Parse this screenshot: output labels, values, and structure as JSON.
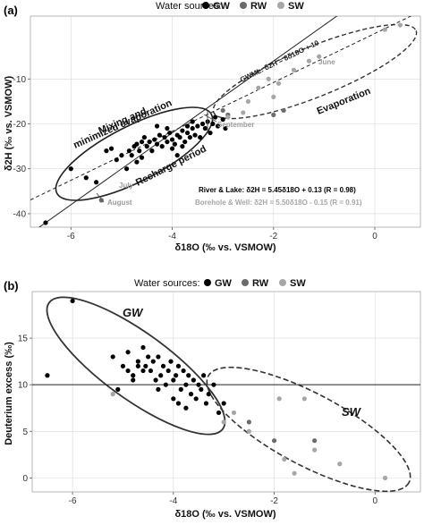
{
  "colors": {
    "GW": "#000000",
    "RW": "#6b6b6b",
    "SW": "#a6a6a6",
    "panel_bg": "#ffffff",
    "grid": "#d9d9d9"
  },
  "chart_data": [
    {
      "type": "scatter",
      "panel": "(a)",
      "legend_title": "Water sources:",
      "legend_items": [
        "GW",
        "RW",
        "SW"
      ],
      "legend_position": "top",
      "xlabel": "δ18O (‰ vs. VSMOW)",
      "ylabel": "δ2H (‰ vs. VSMOW)",
      "xlim": [
        -6.8,
        0.9
      ],
      "ylim": [
        -43,
        4
      ],
      "xticks": [
        -6,
        -4,
        -2,
        0
      ],
      "yticks": [
        -40,
        -30,
        -20,
        -10
      ],
      "grid": true,
      "series": [
        {
          "name": "GW",
          "points": [
            [
              -6.5,
              -42
            ],
            [
              -6,
              -30
            ],
            [
              -5.7,
              -32
            ],
            [
              -5.5,
              -33
            ],
            [
              -5.3,
              -26
            ],
            [
              -5.2,
              -25.5
            ],
            [
              -5.1,
              -28
            ],
            [
              -5.0,
              -27
            ],
            [
              -4.9,
              -30
            ],
            [
              -4.85,
              -26
            ],
            [
              -4.8,
              -27
            ],
            [
              -4.75,
              -25
            ],
            [
              -4.7,
              -24.5
            ],
            [
              -4.65,
              -26
            ],
            [
              -4.6,
              -24
            ],
            [
              -4.55,
              -23
            ],
            [
              -4.5,
              -25
            ],
            [
              -4.45,
              -24
            ],
            [
              -4.4,
              -26
            ],
            [
              -4.35,
              -23.5
            ],
            [
              -4.3,
              -24.5
            ],
            [
              -4.25,
              -22.5
            ],
            [
              -4.2,
              -25
            ],
            [
              -4.15,
              -23
            ],
            [
              -4.1,
              -24
            ],
            [
              -4.05,
              -22
            ],
            [
              -4.0,
              -23.5
            ],
            [
              -3.95,
              -24.5
            ],
            [
              -3.9,
              -22.5
            ],
            [
              -3.85,
              -23
            ],
            [
              -3.8,
              -21.5
            ],
            [
              -3.75,
              -24
            ],
            [
              -3.7,
              -22
            ],
            [
              -3.65,
              -23
            ],
            [
              -3.6,
              -21
            ],
            [
              -3.55,
              -22.5
            ],
            [
              -3.5,
              -20.5
            ],
            [
              -3.45,
              -23
            ],
            [
              -3.4,
              -20
            ],
            [
              -3.35,
              -21
            ],
            [
              -3.3,
              -19.5
            ],
            [
              -3.25,
              -22
            ],
            [
              -3.2,
              -20
            ],
            [
              -3.1,
              -20.5
            ],
            [
              -3.0,
              -19
            ],
            [
              -2.95,
              -21
            ],
            [
              -3.15,
              -18.5
            ],
            [
              -4.3,
              -20.5
            ],
            [
              -4.1,
              -21
            ],
            [
              -3.9,
              -27
            ],
            [
              -4.0,
              -25.5
            ],
            [
              -3.6,
              -19.5
            ],
            [
              -4.6,
              -27.5
            ],
            [
              -4.7,
              -28.5
            ],
            [
              -3.7,
              -20.5
            ],
            [
              -3.8,
              -25
            ]
          ]
        },
        {
          "name": "RW",
          "points": [
            [
              -3.0,
              -17
            ],
            [
              -2.9,
              -18
            ],
            [
              -5.4,
              -37
            ],
            [
              -2.0,
              -18
            ],
            [
              -1.8,
              -17
            ]
          ]
        },
        {
          "name": "SW",
          "points": [
            [
              -2.9,
              -18.5
            ],
            [
              -2.6,
              -17.5
            ],
            [
              -2.5,
              -15
            ],
            [
              -2.3,
              -12
            ],
            [
              -2.1,
              -10
            ],
            [
              -1.9,
              -11
            ],
            [
              -1.6,
              -8
            ],
            [
              -1.3,
              -6
            ],
            [
              -1.1,
              -5
            ],
            [
              0.2,
              1
            ],
            [
              0.5,
              2
            ],
            [
              -2.0,
              -14
            ]
          ]
        }
      ],
      "annotations": [
        {
          "text": "Mixing and",
          "role": "region"
        },
        {
          "text": "minimized evaporation",
          "role": "region"
        },
        {
          "text": "Recharge period",
          "role": "region"
        },
        {
          "text": "Evaporation",
          "role": "region"
        },
        {
          "text": "GWML: δ2H = 8δ18O + 10",
          "role": "line"
        },
        {
          "text": "July",
          "role": "month"
        },
        {
          "text": "August",
          "role": "month"
        },
        {
          "text": "September",
          "role": "month"
        },
        {
          "text": "June",
          "role": "month"
        },
        {
          "text": "River & Lake: δ2H = 5.45δ18O + 0.13 (R = 0.98)",
          "role": "equation"
        },
        {
          "text": "Borehole & Well: δ2H = 5.50δ18O - 0.15 (R = 0.91)",
          "role": "equation"
        }
      ],
      "lines": [
        {
          "label": "GWML",
          "slope": 8,
          "intercept": 10,
          "style": "solid"
        },
        {
          "label": "River & Lake",
          "slope": 5.45,
          "intercept": 0.13,
          "style": "dashed"
        }
      ]
    },
    {
      "type": "scatter",
      "panel": "(b)",
      "legend_title": "Water sources:",
      "legend_items": [
        "GW",
        "RW",
        "SW"
      ],
      "legend_position": "top",
      "xlabel": "δ18O (‰ vs. VSMOW)",
      "ylabel": "Deuterium excess (‰)",
      "xlim": [
        -6.8,
        0.9
      ],
      "ylim": [
        -1.5,
        20
      ],
      "xticks": [
        -6,
        -4,
        -2,
        0
      ],
      "yticks": [
        0,
        5,
        10,
        15
      ],
      "grid": true,
      "reference_line_y": 10,
      "series": [
        {
          "name": "GW",
          "points": [
            [
              -6.5,
              11
            ],
            [
              -6,
              19
            ],
            [
              -5.2,
              13
            ],
            [
              -5.0,
              12
            ],
            [
              -4.9,
              13.5
            ],
            [
              -4.8,
              11
            ],
            [
              -4.7,
              12.5
            ],
            [
              -4.6,
              14
            ],
            [
              -4.55,
              12
            ],
            [
              -4.5,
              13
            ],
            [
              -4.45,
              11.5
            ],
            [
              -4.4,
              12.5
            ],
            [
              -4.35,
              10.5
            ],
            [
              -4.3,
              13
            ],
            [
              -4.25,
              11
            ],
            [
              -4.2,
              12
            ],
            [
              -4.15,
              10
            ],
            [
              -4.1,
              11.5
            ],
            [
              -4.05,
              12.5
            ],
            [
              -4.0,
              10.5
            ],
            [
              -3.95,
              11
            ],
            [
              -3.9,
              12
            ],
            [
              -3.85,
              9.5
            ],
            [
              -3.8,
              11.5
            ],
            [
              -3.75,
              10
            ],
            [
              -3.7,
              11
            ],
            [
              -3.65,
              9
            ],
            [
              -3.6,
              10.5
            ],
            [
              -3.55,
              8.5
            ],
            [
              -3.5,
              10
            ],
            [
              -3.45,
              9.5
            ],
            [
              -3.4,
              11
            ],
            [
              -3.35,
              8
            ],
            [
              -3.3,
              9
            ],
            [
              -3.2,
              10
            ],
            [
              -3.1,
              7
            ],
            [
              -3.0,
              8
            ],
            [
              -4.8,
              10.5
            ],
            [
              -4.9,
              11.5
            ],
            [
              -4.7,
              12
            ],
            [
              -4.3,
              9.5
            ],
            [
              -4.0,
              8.5
            ],
            [
              -3.9,
              8
            ],
            [
              -3.75,
              7.5
            ],
            [
              -5.1,
              9.5
            ],
            [
              -4.6,
              11.5
            ]
          ]
        },
        {
          "name": "RW",
          "points": [
            [
              -2.0,
              4
            ],
            [
              -1.2,
              4
            ],
            [
              -2.5,
              6
            ]
          ]
        },
        {
          "name": "SW",
          "points": [
            [
              -5.2,
              9
            ],
            [
              -3.0,
              6
            ],
            [
              -2.8,
              7
            ],
            [
              -2.5,
              5
            ],
            [
              -1.9,
              8.5
            ],
            [
              -1.4,
              8.5
            ],
            [
              -1.8,
              2
            ],
            [
              -1.6,
              0.5
            ],
            [
              -1.2,
              3
            ],
            [
              -0.7,
              1.5
            ],
            [
              0.2,
              0
            ],
            [
              0.6,
              -2
            ]
          ]
        }
      ],
      "annotations": [
        {
          "text": "GW",
          "role": "region"
        },
        {
          "text": "SW",
          "role": "region"
        }
      ]
    }
  ]
}
